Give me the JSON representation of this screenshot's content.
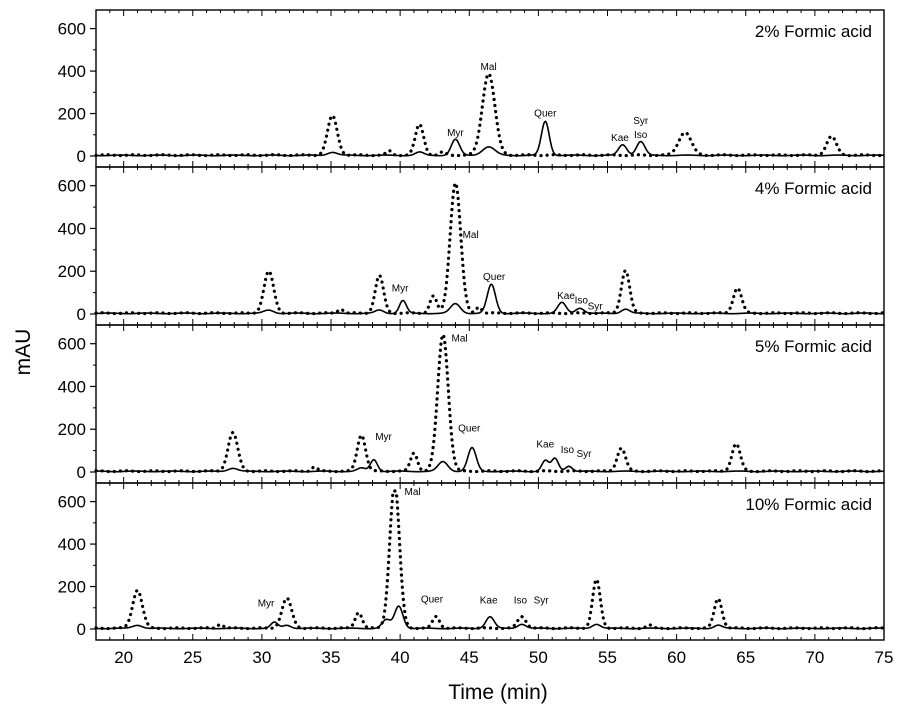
{
  "chart_data": {
    "type": "line",
    "xlabel": "Time (min)",
    "ylabel": "mAU",
    "xlim": [
      18,
      75
    ],
    "ylim": [
      0,
      650
    ],
    "xticks": [
      20,
      25,
      30,
      35,
      40,
      45,
      50,
      55,
      60,
      65,
      70,
      75
    ],
    "yticks": [
      0,
      200,
      400,
      600
    ],
    "grid": false,
    "panels": [
      {
        "title": "2% Formic acid",
        "dotted_peaks": [
          [
            35.1,
            185,
            0.35
          ],
          [
            41.4,
            145,
            0.3
          ],
          [
            46.4,
            385,
            0.45
          ],
          [
            60.6,
            108,
            0.45
          ],
          [
            71.2,
            88,
            0.35
          ],
          [
            39.2,
            20,
            0.2
          ],
          [
            43.1,
            15,
            0.2
          ]
        ],
        "solid_peaks": [
          [
            35.1,
            15,
            0.35
          ],
          [
            41.4,
            15,
            0.3
          ],
          [
            44.0,
            75,
            0.3
          ],
          [
            46.4,
            40,
            0.45
          ],
          [
            50.5,
            160,
            0.28
          ],
          [
            56.1,
            50,
            0.3
          ],
          [
            57.4,
            65,
            0.3
          ]
        ],
        "labels": [
          {
            "text": "Myr",
            "x": 44.0,
            "y": 95
          },
          {
            "text": "Mal",
            "x": 46.4,
            "y": 405
          },
          {
            "text": "Quer",
            "x": 50.5,
            "y": 185
          },
          {
            "text": "Kae",
            "x": 55.9,
            "y": 70
          },
          {
            "text": "Iso",
            "x": 57.4,
            "y": 85
          },
          {
            "text": "Syr",
            "x": 57.4,
            "y": 150
          }
        ]
      },
      {
        "title": "4% Formic acid",
        "dotted_peaks": [
          [
            30.5,
            195,
            0.35
          ],
          [
            38.5,
            175,
            0.3
          ],
          [
            42.4,
            80,
            0.25
          ],
          [
            44.0,
            610,
            0.38
          ],
          [
            56.3,
            200,
            0.3
          ],
          [
            64.4,
            118,
            0.3
          ],
          [
            35.7,
            20,
            0.2
          ],
          [
            45.7,
            30,
            0.2
          ]
        ],
        "solid_peaks": [
          [
            30.5,
            15,
            0.35
          ],
          [
            38.5,
            15,
            0.3
          ],
          [
            40.2,
            60,
            0.25
          ],
          [
            44.0,
            45,
            0.35
          ],
          [
            46.6,
            135,
            0.3
          ],
          [
            51.7,
            50,
            0.3
          ],
          [
            53.0,
            25,
            0.3
          ],
          [
            56.3,
            20,
            0.3
          ]
        ],
        "labels": [
          {
            "text": "Myr",
            "x": 40.0,
            "y": 105
          },
          {
            "text": "Mal",
            "x": 45.1,
            "y": 355
          },
          {
            "text": "Quer",
            "x": 46.8,
            "y": 160
          },
          {
            "text": "Kae",
            "x": 52.0,
            "y": 70
          },
          {
            "text": "Iso",
            "x": 53.1,
            "y": 50
          },
          {
            "text": "Syr",
            "x": 54.1,
            "y": 20
          }
        ]
      },
      {
        "title": "5% Formic acid",
        "dotted_peaks": [
          [
            27.9,
            180,
            0.35
          ],
          [
            37.2,
            170,
            0.3
          ],
          [
            41.0,
            85,
            0.25
          ],
          [
            43.1,
            640,
            0.38
          ],
          [
            56.0,
            108,
            0.3
          ],
          [
            64.3,
            128,
            0.3
          ],
          [
            33.8,
            20,
            0.2
          ]
        ],
        "solid_peaks": [
          [
            27.9,
            15,
            0.35
          ],
          [
            37.2,
            15,
            0.3
          ],
          [
            38.1,
            55,
            0.25
          ],
          [
            43.1,
            45,
            0.35
          ],
          [
            45.2,
            110,
            0.3
          ],
          [
            50.5,
            50,
            0.25
          ],
          [
            51.2,
            60,
            0.25
          ],
          [
            52.2,
            25,
            0.25
          ]
        ],
        "labels": [
          {
            "text": "Mal",
            "x": 44.3,
            "y": 610
          },
          {
            "text": "Myr",
            "x": 38.8,
            "y": 150
          },
          {
            "text": "Quer",
            "x": 45.0,
            "y": 190
          },
          {
            "text": "Kae",
            "x": 50.5,
            "y": 115
          },
          {
            "text": "Iso",
            "x": 52.1,
            "y": 90
          },
          {
            "text": "Syr",
            "x": 53.3,
            "y": 70
          }
        ]
      },
      {
        "title": "10% Formic acid",
        "dotted_peaks": [
          [
            21.0,
            180,
            0.35
          ],
          [
            31.8,
            140,
            0.35
          ],
          [
            37.0,
            75,
            0.25
          ],
          [
            39.6,
            680,
            0.35
          ],
          [
            42.6,
            55,
            0.25
          ],
          [
            48.8,
            55,
            0.3
          ],
          [
            54.2,
            228,
            0.28
          ],
          [
            63.0,
            140,
            0.28
          ],
          [
            27.0,
            20,
            0.2
          ],
          [
            58.0,
            15,
            0.2
          ]
        ],
        "solid_peaks": [
          [
            21.0,
            15,
            0.35
          ],
          [
            30.9,
            28,
            0.25
          ],
          [
            31.8,
            15,
            0.3
          ],
          [
            39.0,
            40,
            0.3
          ],
          [
            39.9,
            105,
            0.3
          ],
          [
            46.5,
            55,
            0.3
          ],
          [
            48.8,
            20,
            0.3
          ],
          [
            54.2,
            20,
            0.3
          ],
          [
            63.0,
            15,
            0.28
          ]
        ],
        "labels": [
          {
            "text": "Mal",
            "x": 40.9,
            "y": 630
          },
          {
            "text": "Myr",
            "x": 30.3,
            "y": 105
          },
          {
            "text": "Quer",
            "x": 42.3,
            "y": 125
          },
          {
            "text": "Kae",
            "x": 46.4,
            "y": 120
          },
          {
            "text": "Iso",
            "x": 48.7,
            "y": 120
          },
          {
            "text": "Syr",
            "x": 50.2,
            "y": 120
          }
        ]
      }
    ]
  }
}
